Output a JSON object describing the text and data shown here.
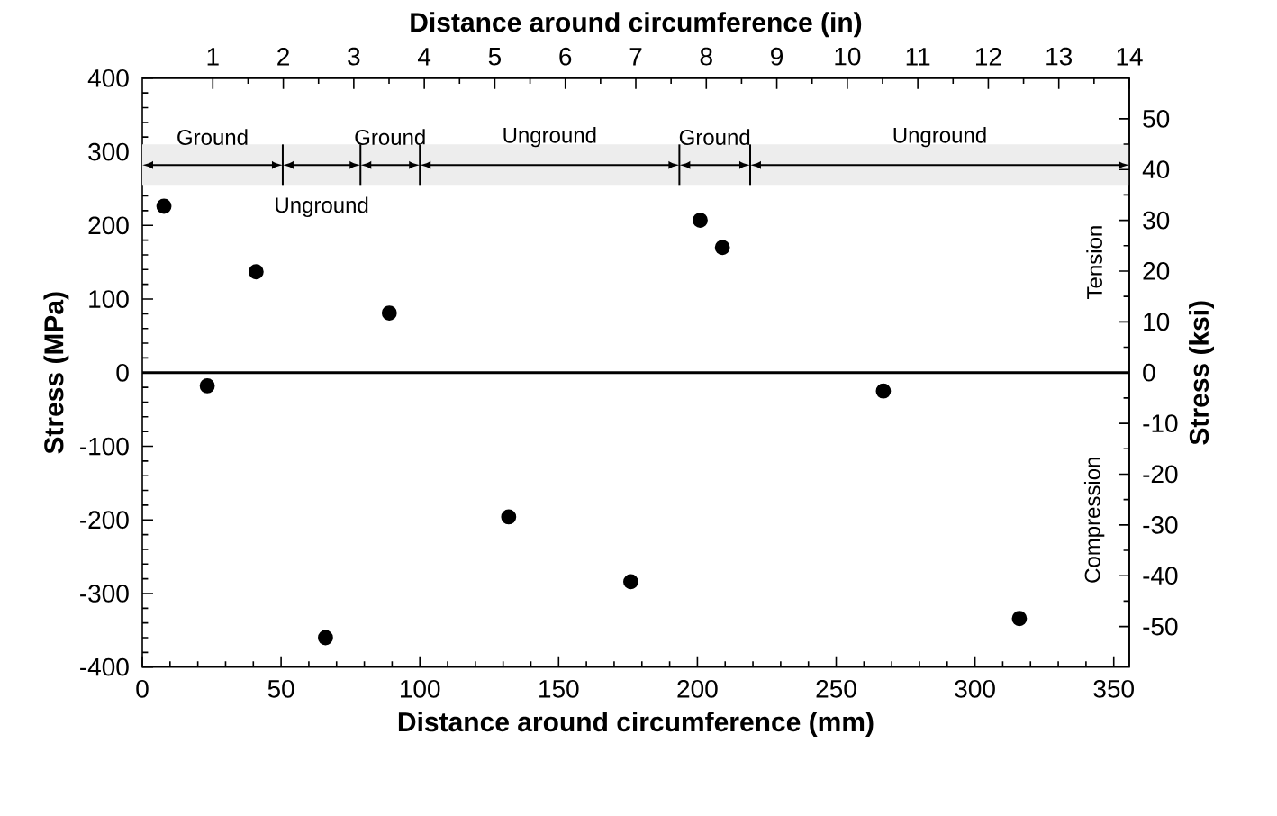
{
  "chart_data": {
    "type": "scatter",
    "xlabel": "Distance around circumference (mm)",
    "ylabel": "Stress (MPa)",
    "y2label": "Stress (ksi)",
    "x2label": "Distance around circumference (in)",
    "xlim": [
      0,
      355.6
    ],
    "xticks": [
      0,
      50,
      100,
      150,
      200,
      250,
      300,
      350
    ],
    "ylim": [
      -400,
      400
    ],
    "yticks": [
      -400,
      -300,
      -200,
      -100,
      0,
      100,
      200,
      300,
      400
    ],
    "x2lim": [
      0,
      14
    ],
    "x2ticks": [
      1,
      2,
      3,
      4,
      5,
      6,
      7,
      8,
      9,
      10,
      11,
      12,
      13,
      14
    ],
    "y2lim": [
      -58.01,
      58.01
    ],
    "y2ticks": [
      -50,
      -40,
      -30,
      -20,
      -10,
      0,
      10,
      20,
      30,
      40,
      50
    ],
    "series": [
      {
        "color": "#000000",
        "x": [
          7.8,
          23.4,
          41,
          66,
          89,
          132,
          176,
          201,
          209,
          267,
          316
        ],
        "values": [
          226,
          -18,
          137,
          -360,
          81,
          -196,
          -284,
          207,
          170,
          -25,
          -334
        ]
      }
    ],
    "marker": "circle",
    "grid": false,
    "ref_lines": [
      {
        "axis": "y",
        "value": 0,
        "color": "#000000"
      }
    ],
    "bands": [
      {
        "axis": "x",
        "from": 0,
        "to": 50.6,
        "label": "Ground"
      },
      {
        "axis": "x",
        "from": 50.6,
        "to": 78.6,
        "label": "Unground"
      },
      {
        "axis": "x",
        "from": 78.6,
        "to": 100,
        "label": "Ground"
      },
      {
        "axis": "x",
        "from": 100,
        "to": 193.5,
        "label": "Unground"
      },
      {
        "axis": "x",
        "from": 193.5,
        "to": 219,
        "label": "Ground"
      },
      {
        "axis": "x",
        "from": 219,
        "to": 355.6,
        "label": "Unground"
      }
    ],
    "annotations": [
      "Tension",
      "Compression"
    ]
  }
}
